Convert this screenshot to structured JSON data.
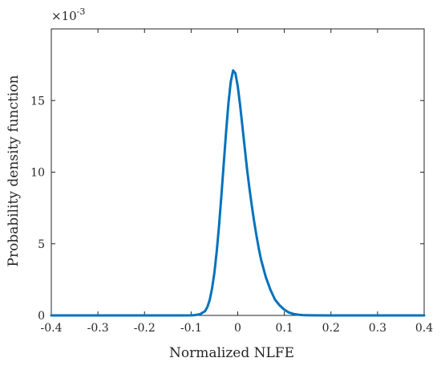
{
  "chart_data": {
    "type": "line",
    "title": "",
    "xlabel": "Normalized NLFE",
    "ylabel": "Probability density function",
    "y_multiplier_label": "×10",
    "y_multiplier_exponent": "-3",
    "xlim": [
      -0.4,
      0.4
    ],
    "ylim": [
      0,
      0.02
    ],
    "x_ticks": [
      -0.4,
      -0.3,
      -0.2,
      -0.1,
      0,
      0.1,
      0.2,
      0.3,
      0.4
    ],
    "x_tick_labels": [
      "-0.4",
      "-0.3",
      "-0.2",
      "-0.1",
      "0",
      "0.1",
      "0.2",
      "0.3",
      "0.4"
    ],
    "y_ticks": [
      0,
      0.005,
      0.01,
      0.015
    ],
    "y_tick_labels": [
      "0",
      "5",
      "10",
      "15"
    ],
    "grid": false,
    "box": true,
    "line_color": "#0072BD",
    "series": [
      {
        "x": [
          -0.4,
          -0.2,
          -0.12,
          -0.1,
          -0.09,
          -0.08,
          -0.07,
          -0.065,
          -0.06,
          -0.055,
          -0.05,
          -0.045,
          -0.04,
          -0.035,
          -0.03,
          -0.025,
          -0.02,
          -0.015,
          -0.01,
          -0.005,
          0,
          0.005,
          0.01,
          0.015,
          0.02,
          0.025,
          0.03,
          0.035,
          0.04,
          0.045,
          0.05,
          0.06,
          0.07,
          0.08,
          0.09,
          0.1,
          0.11,
          0.12,
          0.13,
          0.14,
          0.16,
          0.2,
          0.4
        ],
        "y": [
          0,
          0,
          0,
          1e-05,
          3e-05,
          0.0001,
          0.0003,
          0.0006,
          0.0011,
          0.0019,
          0.003,
          0.0045,
          0.0063,
          0.0084,
          0.0106,
          0.0128,
          0.0148,
          0.0163,
          0.0171,
          0.0169,
          0.016,
          0.0147,
          0.0132,
          0.0117,
          0.0102,
          0.0089,
          0.0077,
          0.0066,
          0.0056,
          0.0047,
          0.0039,
          0.0027,
          0.0018,
          0.0011,
          0.0007,
          0.0004,
          0.0002,
          0.0001,
          5e-05,
          2e-05,
          1e-05,
          0,
          0
        ]
      }
    ]
  }
}
